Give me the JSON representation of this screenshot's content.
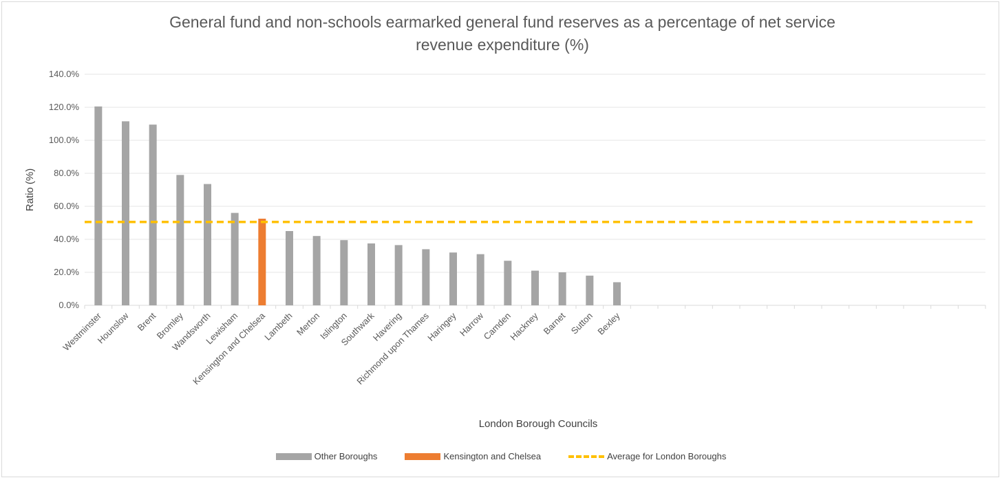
{
  "chart_data": {
    "type": "bar",
    "title": "General fund and non-schools earmarked general fund reserves as a percentage of net service\nrevenue expenditure (%)",
    "xlabel": "London Borough Councils",
    "ylabel": "Ratio (%)",
    "ylim": [
      0,
      140
    ],
    "yticks": [
      "0.0%",
      "20.0%",
      "40.0%",
      "60.0%",
      "80.0%",
      "100.0%",
      "120.0%",
      "140.0%"
    ],
    "grid": true,
    "legend_position": "bottom",
    "categories": [
      "Westminster",
      "Hounslow",
      "Brent",
      "Bromley",
      "Wandsworth",
      "Lewisham",
      "Kensington and Chelsea",
      "Lambeth",
      "Merton",
      "Islington",
      "Southwark",
      "Havering",
      "Richmond upon Thames",
      "Haringey",
      "Harrow",
      "Camden",
      "Hackney",
      "Barnet",
      "Sutton",
      "Bexley",
      "",
      "",
      "",
      "",
      "",
      "",
      "",
      "",
      "",
      "",
      "",
      "",
      ""
    ],
    "series": [
      {
        "name": "Other Boroughs",
        "color": "#a5a5a5",
        "values": [
          120.5,
          111.5,
          109.5,
          79,
          73.5,
          56,
          null,
          45,
          42,
          39.5,
          37.5,
          36.5,
          34,
          32,
          31,
          27,
          21,
          20,
          18,
          14,
          null,
          null,
          null,
          null,
          null,
          null,
          null,
          null,
          null,
          null,
          null,
          null,
          null
        ]
      },
      {
        "name": "Kensington and Chelsea",
        "color": "#ed7d31",
        "values": [
          null,
          null,
          null,
          null,
          null,
          null,
          52.5,
          null,
          null,
          null,
          null,
          null,
          null,
          null,
          null,
          null,
          null,
          null,
          null,
          null,
          null,
          null,
          null,
          null,
          null,
          null,
          null,
          null,
          null,
          null,
          null,
          null,
          null
        ]
      },
      {
        "name": "Average for London Boroughs",
        "color": "#ffc000",
        "style": "dashed-line",
        "value": 50.5
      }
    ]
  }
}
